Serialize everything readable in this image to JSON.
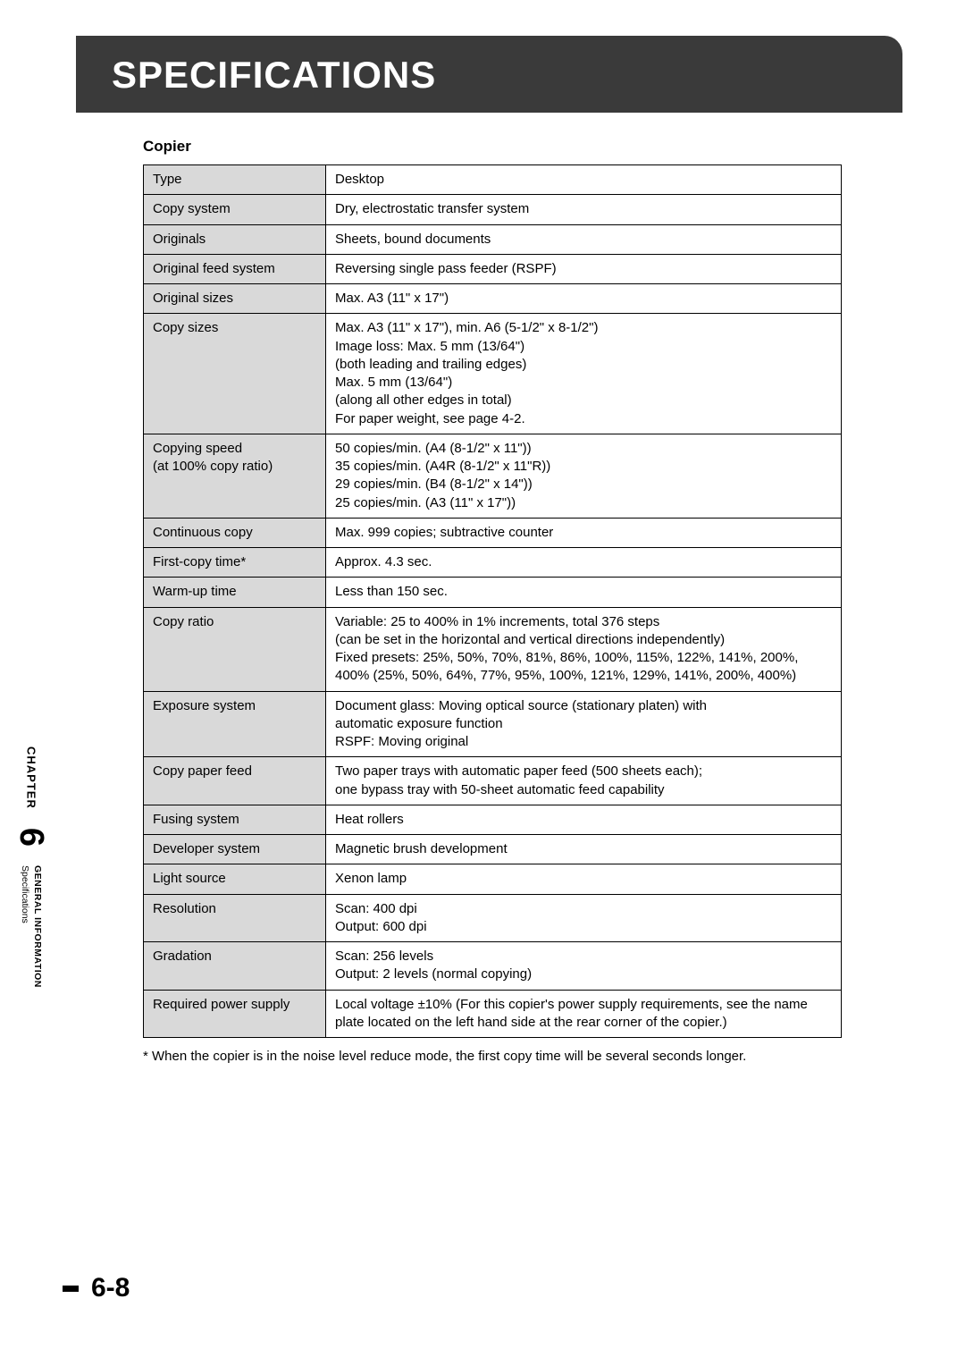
{
  "header": {
    "title": "SPECIFICATIONS"
  },
  "section_title": "Copier",
  "table": {
    "rows": [
      {
        "label": "Type",
        "value": "Desktop"
      },
      {
        "label": "Copy system",
        "value": "Dry, electrostatic transfer system"
      },
      {
        "label": "Originals",
        "value": "Sheets, bound documents"
      },
      {
        "label": "Original feed system",
        "value": "Reversing single pass feeder (RSPF)"
      },
      {
        "label": "Original sizes",
        "value": "Max. A3 (11\" x 17\")"
      },
      {
        "label": "Copy sizes",
        "value": "Max. A3 (11\" x 17\"), min. A6 (5-1/2\" x 8-1/2\")\nImage loss:     Max. 5 mm (13/64\")\n                       (both leading and trailing edges)\n                       Max. 5 mm (13/64\")\n                       (along all other edges in total)\nFor paper weight, see page 4-2."
      },
      {
        "label": "Copying speed\n(at 100% copy ratio)",
        "value": "50 copies/min. (A4 (8-1/2\" x 11\"))\n35 copies/min. (A4R (8-1/2\" x 11\"R))\n29 copies/min. (B4 (8-1/2\" x 14\"))\n25 copies/min. (A3 (11\" x 17\"))"
      },
      {
        "label": "Continuous copy",
        "value": "Max. 999 copies; subtractive counter"
      },
      {
        "label": "First-copy time*",
        "value": "Approx. 4.3  sec."
      },
      {
        "label": "Warm-up time",
        "value": "Less than 150 sec."
      },
      {
        "label": "Copy ratio",
        "value": "Variable: 25 to 400% in 1% increments, total 376 steps\n(can be set in the horizontal and vertical directions independently)\nFixed presets: 25%, 50%, 70%, 81%, 86%, 100%, 115%, 122%, 141%, 200%, 400% (25%, 50%, 64%, 77%, 95%, 100%, 121%, 129%, 141%, 200%, 400%)"
      },
      {
        "label": "Exposure system",
        "value": "Document glass:   Moving optical source (stationary platen) with\n                              automatic exposure function\nRSPF:                  Moving original"
      },
      {
        "label": "Copy paper feed",
        "value": "Two paper trays with automatic paper feed (500 sheets each);\none bypass tray with 50-sheet automatic feed capability"
      },
      {
        "label": "Fusing system",
        "value": "Heat rollers"
      },
      {
        "label": "Developer system",
        "value": "Magnetic brush development"
      },
      {
        "label": "Light source",
        "value": "Xenon lamp"
      },
      {
        "label": "Resolution",
        "value": "Scan:    400 dpi\nOutput:  600 dpi"
      },
      {
        "label": "Gradation",
        "value": "Scan:    256 levels\nOutput:  2 levels (normal copying)"
      },
      {
        "label": "Required power supply",
        "value": "Local voltage ±10% (For this copier's power supply requirements, see the name plate located on the left hand side at the rear corner of the copier.)"
      }
    ]
  },
  "footnote": "*  When the copier is in the noise level reduce mode, the first copy time will be several seconds longer.",
  "side": {
    "chapter_label": "CHAPTER",
    "chapter_num": "6",
    "section": "GENERAL INFORMATION",
    "subsection": "Specifications"
  },
  "page_number": "6-8",
  "colors": {
    "banner_bg": "#3a3a3a",
    "banner_text": "#ffffff",
    "label_bg": "#d9d9d9",
    "border": "#000000",
    "text": "#000000",
    "page_bg": "#ffffff"
  }
}
